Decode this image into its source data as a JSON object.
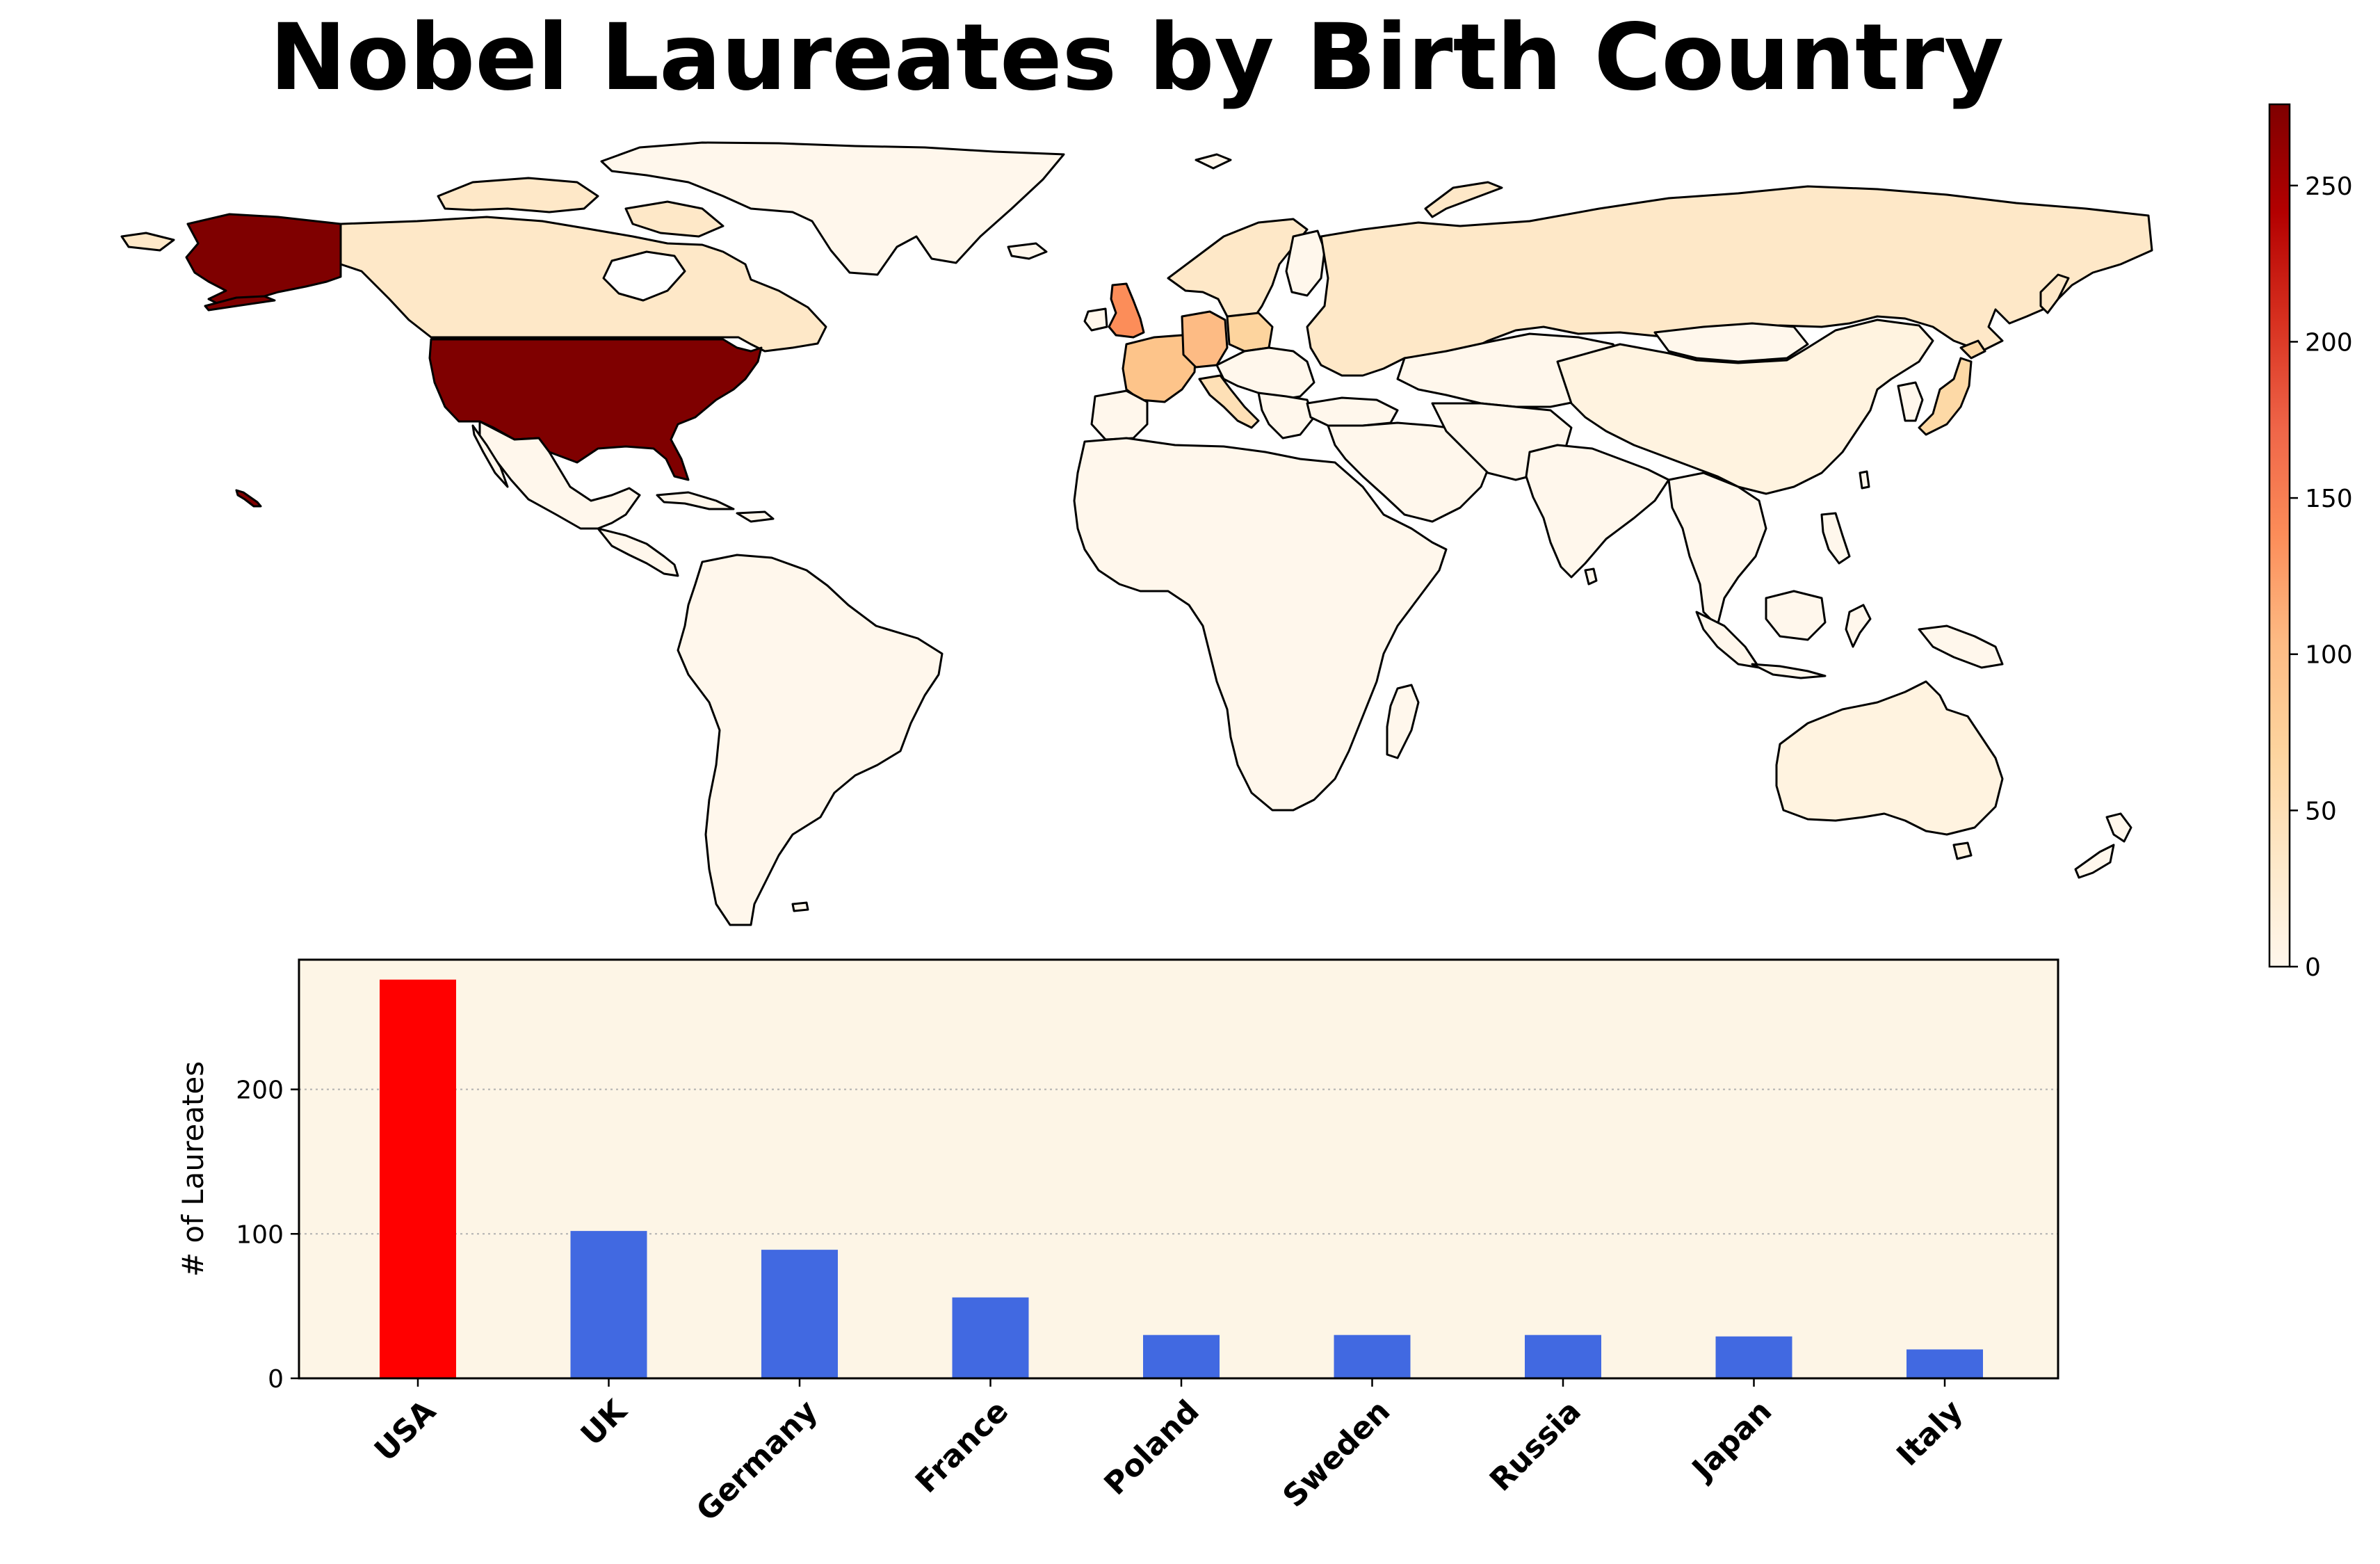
{
  "chart_data": [
    {
      "type": "choropleth",
      "colormap": "OrRd",
      "colorbar": {
        "ticks": [
          0,
          50,
          100,
          150,
          200,
          250
        ],
        "range": [
          0,
          276
        ]
      },
      "regions": [
        {
          "region": "USA",
          "value": 276
        },
        {
          "region": "UK",
          "value": 102
        },
        {
          "region": "Germany",
          "value": 89
        },
        {
          "region": "France",
          "value": 56
        },
        {
          "region": "Poland",
          "value": 30
        },
        {
          "region": "Sweden",
          "value": 30
        },
        {
          "region": "Russia",
          "value": 30
        },
        {
          "region": "Japan",
          "value": 29
        },
        {
          "region": "Italy",
          "value": 20
        },
        {
          "region": "Canada",
          "value": 20
        },
        {
          "region": "China",
          "value": 12
        },
        {
          "region": "Australia",
          "value": 12
        }
      ]
    },
    {
      "type": "bar",
      "categories": [
        "USA",
        "UK",
        "Germany",
        "France",
        "Poland",
        "Sweden",
        "Russia",
        "Japan",
        "Italy"
      ],
      "values": [
        276,
        102,
        89,
        56,
        30,
        30,
        30,
        29,
        20
      ],
      "bar_colors": [
        "#ff0000",
        "#4169e1",
        "#4169e1",
        "#4169e1",
        "#4169e1",
        "#4169e1",
        "#4169e1",
        "#4169e1",
        "#4169e1"
      ],
      "ylabel": "# of Laureates",
      "yticks": [
        0,
        100,
        200
      ],
      "ylim": [
        0,
        289.8
      ],
      "grid": "y-dotted",
      "background": "#fdf5e6"
    }
  ],
  "title": "Nobel Laureates by Birth Country"
}
